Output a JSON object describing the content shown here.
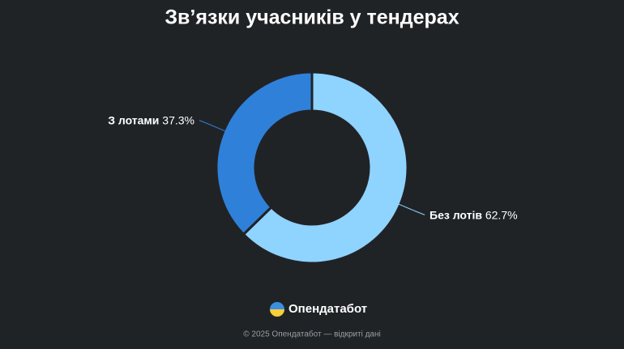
{
  "chart_data": {
    "type": "donut",
    "title": "Зв’язки учасників у тендерах",
    "categories": [
      "Без лотів",
      "З лотами"
    ],
    "values": [
      62.7,
      37.3
    ],
    "value_labels": [
      "62.7%",
      "37.3%"
    ],
    "colors": [
      "#8fd3ff",
      "#2f80d9"
    ]
  },
  "brand": "Опендатабот",
  "footer": "© 2025 Опендатабот — відкриті дані"
}
